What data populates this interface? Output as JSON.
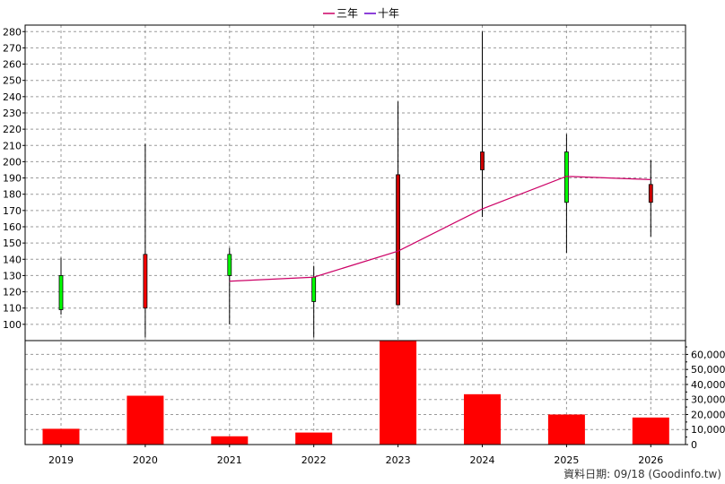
{
  "chart_data": {
    "type": "candlestick+bar",
    "legend": [
      {
        "name": "三年",
        "color": "#cc0066"
      },
      {
        "name": "十年",
        "color": "#6600cc"
      }
    ],
    "categories": [
      "2019",
      "2020",
      "2021",
      "2022",
      "2023",
      "2024",
      "2025",
      "2026"
    ],
    "price_axis": {
      "ylim": [
        100,
        280
      ],
      "ticks": [
        100,
        110,
        120,
        130,
        140,
        150,
        160,
        170,
        180,
        190,
        200,
        210,
        220,
        230,
        240,
        250,
        260,
        270,
        280
      ]
    },
    "candles": [
      {
        "year": "2019",
        "open": 109,
        "close": 130,
        "high": 141,
        "low": 106,
        "color": "#00ff00"
      },
      {
        "year": "2020",
        "open": 143,
        "close": 110,
        "high": 211,
        "low": 92,
        "color": "#ff0000"
      },
      {
        "year": "2021",
        "open": 130,
        "close": 143,
        "high": 147,
        "low": 100,
        "color": "#00ff00"
      },
      {
        "year": "2022",
        "open": 114,
        "close": 129,
        "high": 136,
        "low": 92,
        "color": "#00ff00"
      },
      {
        "year": "2023",
        "open": 192,
        "close": 112,
        "high": 237,
        "low": 112,
        "color": "#cc0000"
      },
      {
        "year": "2024",
        "open": 206,
        "close": 195,
        "high": 280,
        "low": 166,
        "color": "#cc0000"
      },
      {
        "year": "2025",
        "open": 175,
        "close": 206,
        "high": 217,
        "low": 144,
        "color": "#00ff00"
      },
      {
        "year": "2026",
        "open": 186,
        "close": 175,
        "high": 201,
        "low": 154,
        "color": "#cc0000"
      }
    ],
    "series": [
      {
        "name": "三年",
        "color": "#cc0066",
        "points": [
          [
            "2021",
            126.5
          ],
          [
            "2022",
            129
          ],
          [
            "2023",
            145
          ],
          [
            "2024",
            171
          ],
          [
            "2025",
            191
          ],
          [
            "2026",
            189
          ]
        ]
      }
    ],
    "volume_axis": {
      "ylim": [
        0,
        68000
      ],
      "ticks": [
        0,
        10000,
        20000,
        30000,
        40000,
        50000,
        60000
      ],
      "tick_labels": [
        "0",
        "10,000",
        "20,000",
        "30,000",
        "40,000",
        "50,000",
        "60,000"
      ]
    },
    "volume": [
      10500,
      32500,
      5500,
      8000,
      69000,
      33500,
      20000,
      18000
    ],
    "volume_color": "#ff0000",
    "footer": "資料日期: 09/18  (Goodinfo.tw)"
  }
}
